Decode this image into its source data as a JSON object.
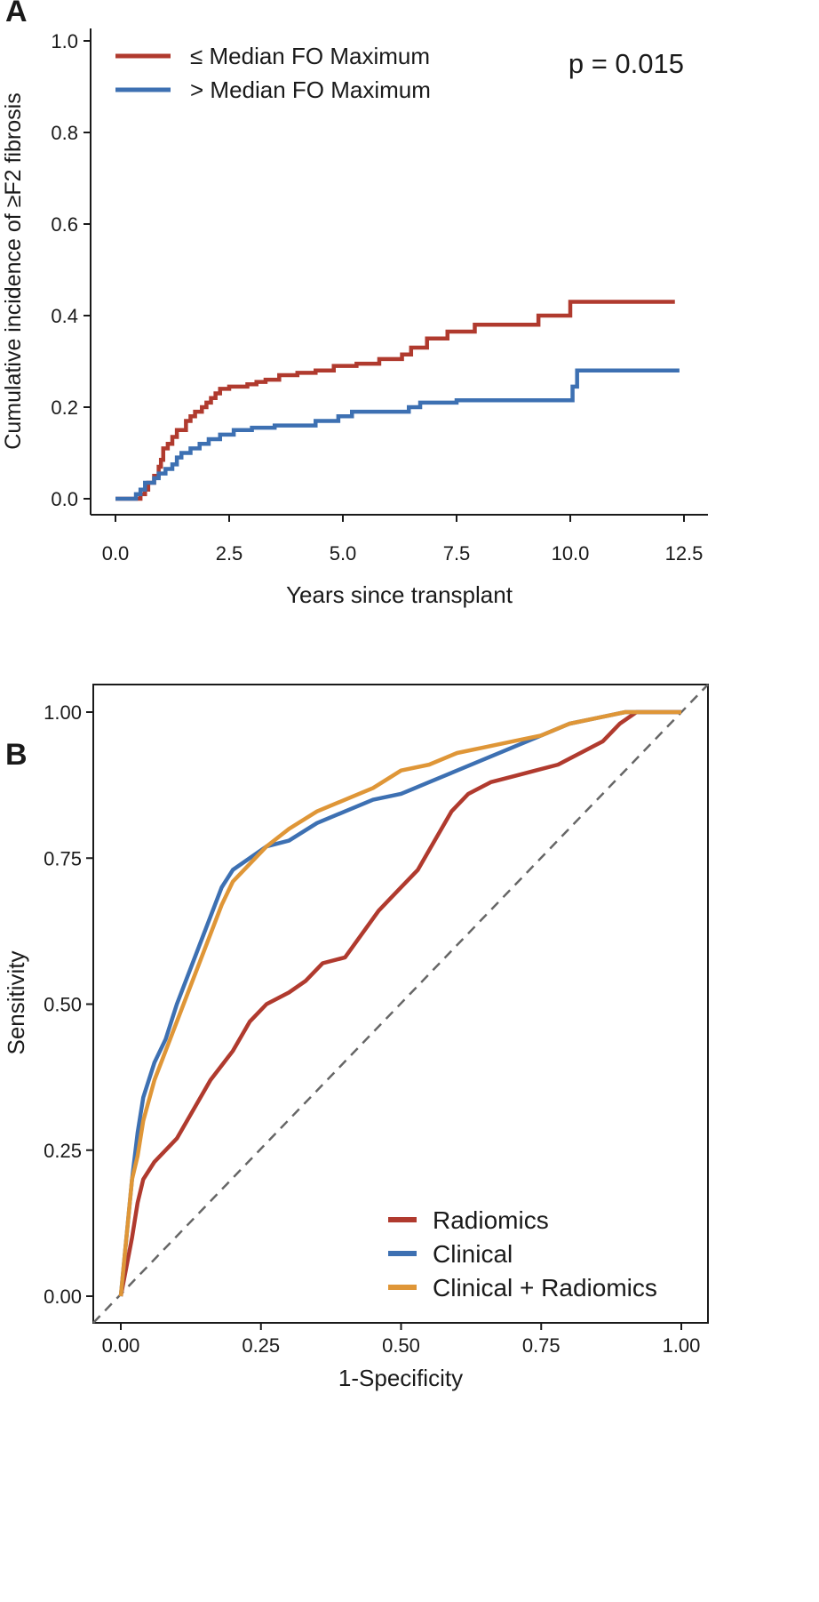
{
  "chart_data": [
    {
      "panel": "A",
      "type": "line",
      "xlabel": "Years since transplant",
      "ylabel": "Cumulative incidence of ≥F2 fibrosis",
      "xlim": [
        0,
        12.5
      ],
      "ylim": [
        0,
        1.0
      ],
      "xticks": [
        "0.0",
        "2.5",
        "5.0",
        "7.5",
        "10.0",
        "12.5"
      ],
      "yticks": [
        "0.0",
        "0.2",
        "0.4",
        "0.6",
        "0.8",
        "1.0"
      ],
      "annotation": "p = 0.015",
      "legend_position": "top-left",
      "series": [
        {
          "name": "≤ Median FO Maximum",
          "color": "#b03a2e",
          "step": true,
          "points": [
            [
              0,
              0
            ],
            [
              0.45,
              0
            ],
            [
              0.55,
              0.01
            ],
            [
              0.65,
              0.02
            ],
            [
              0.72,
              0.035
            ],
            [
              0.85,
              0.05
            ],
            [
              0.95,
              0.07
            ],
            [
              1.0,
              0.085
            ],
            [
              1.05,
              0.11
            ],
            [
              1.15,
              0.12
            ],
            [
              1.25,
              0.135
            ],
            [
              1.35,
              0.15
            ],
            [
              1.55,
              0.17
            ],
            [
              1.65,
              0.18
            ],
            [
              1.75,
              0.19
            ],
            [
              1.9,
              0.2
            ],
            [
              2.0,
              0.21
            ],
            [
              2.1,
              0.22
            ],
            [
              2.2,
              0.23
            ],
            [
              2.3,
              0.24
            ],
            [
              2.5,
              0.245
            ],
            [
              2.9,
              0.25
            ],
            [
              3.1,
              0.255
            ],
            [
              3.3,
              0.26
            ],
            [
              3.6,
              0.27
            ],
            [
              4.0,
              0.275
            ],
            [
              4.4,
              0.28
            ],
            [
              4.8,
              0.29
            ],
            [
              5.3,
              0.295
            ],
            [
              5.8,
              0.305
            ],
            [
              6.3,
              0.315
            ],
            [
              6.5,
              0.33
            ],
            [
              6.85,
              0.35
            ],
            [
              7.3,
              0.365
            ],
            [
              7.9,
              0.38
            ],
            [
              9.3,
              0.4
            ],
            [
              10.0,
              0.43
            ],
            [
              12.3,
              0.43
            ]
          ]
        },
        {
          "name": "> Median FO Maximum",
          "color": "#3d70b2",
          "step": true,
          "points": [
            [
              0,
              0
            ],
            [
              0.4,
              0
            ],
            [
              0.45,
              0.01
            ],
            [
              0.55,
              0.02
            ],
            [
              0.65,
              0.035
            ],
            [
              0.85,
              0.045
            ],
            [
              0.95,
              0.055
            ],
            [
              1.1,
              0.065
            ],
            [
              1.25,
              0.075
            ],
            [
              1.35,
              0.09
            ],
            [
              1.45,
              0.1
            ],
            [
              1.65,
              0.11
            ],
            [
              1.85,
              0.12
            ],
            [
              2.05,
              0.13
            ],
            [
              2.3,
              0.14
            ],
            [
              2.6,
              0.15
            ],
            [
              3.0,
              0.155
            ],
            [
              3.5,
              0.16
            ],
            [
              4.4,
              0.17
            ],
            [
              4.9,
              0.18
            ],
            [
              5.2,
              0.19
            ],
            [
              6.45,
              0.2
            ],
            [
              6.7,
              0.21
            ],
            [
              7.5,
              0.215
            ],
            [
              10.0,
              0.215
            ],
            [
              10.05,
              0.245
            ],
            [
              10.15,
              0.28
            ],
            [
              12.4,
              0.28
            ]
          ]
        }
      ]
    },
    {
      "panel": "B",
      "type": "line",
      "xlabel": "1-Specificity",
      "ylabel": "Sensitivity",
      "xlim": [
        0,
        1
      ],
      "ylim": [
        0,
        1
      ],
      "xticks": [
        "0.00",
        "0.25",
        "0.50",
        "0.75",
        "1.00"
      ],
      "yticks": [
        "0.00",
        "0.25",
        "0.50",
        "0.75",
        "1.00"
      ],
      "reference_line": "diagonal dashed",
      "legend_position": "bottom-right",
      "series": [
        {
          "name": "Radiomics",
          "color": "#b03a2e",
          "points": [
            [
              0,
              0
            ],
            [
              0.01,
              0.05
            ],
            [
              0.02,
              0.1
            ],
            [
              0.03,
              0.16
            ],
            [
              0.04,
              0.2
            ],
            [
              0.06,
              0.23
            ],
            [
              0.1,
              0.27
            ],
            [
              0.13,
              0.32
            ],
            [
              0.16,
              0.37
            ],
            [
              0.2,
              0.42
            ],
            [
              0.23,
              0.47
            ],
            [
              0.26,
              0.5
            ],
            [
              0.3,
              0.52
            ],
            [
              0.33,
              0.54
            ],
            [
              0.36,
              0.57
            ],
            [
              0.4,
              0.58
            ],
            [
              0.43,
              0.62
            ],
            [
              0.46,
              0.66
            ],
            [
              0.5,
              0.7
            ],
            [
              0.53,
              0.73
            ],
            [
              0.56,
              0.78
            ],
            [
              0.59,
              0.83
            ],
            [
              0.62,
              0.86
            ],
            [
              0.66,
              0.88
            ],
            [
              0.7,
              0.89
            ],
            [
              0.74,
              0.9
            ],
            [
              0.78,
              0.91
            ],
            [
              0.82,
              0.93
            ],
            [
              0.86,
              0.95
            ],
            [
              0.89,
              0.98
            ],
            [
              0.92,
              1.0
            ],
            [
              1.0,
              1.0
            ]
          ]
        },
        {
          "name": "Clinical",
          "color": "#3d70b2",
          "points": [
            [
              0,
              0
            ],
            [
              0.01,
              0.1
            ],
            [
              0.02,
              0.2
            ],
            [
              0.03,
              0.28
            ],
            [
              0.04,
              0.34
            ],
            [
              0.06,
              0.4
            ],
            [
              0.08,
              0.44
            ],
            [
              0.1,
              0.5
            ],
            [
              0.12,
              0.55
            ],
            [
              0.14,
              0.6
            ],
            [
              0.16,
              0.65
            ],
            [
              0.18,
              0.7
            ],
            [
              0.2,
              0.73
            ],
            [
              0.23,
              0.75
            ],
            [
              0.26,
              0.77
            ],
            [
              0.3,
              0.78
            ],
            [
              0.35,
              0.81
            ],
            [
              0.4,
              0.83
            ],
            [
              0.45,
              0.85
            ],
            [
              0.5,
              0.86
            ],
            [
              0.55,
              0.88
            ],
            [
              0.6,
              0.9
            ],
            [
              0.65,
              0.92
            ],
            [
              0.7,
              0.94
            ],
            [
              0.75,
              0.96
            ],
            [
              0.8,
              0.98
            ],
            [
              0.85,
              0.99
            ],
            [
              0.9,
              1.0
            ],
            [
              1.0,
              1.0
            ]
          ]
        },
        {
          "name": "Clinical + Radiomics",
          "color": "#df9637",
          "points": [
            [
              0,
              0
            ],
            [
              0.01,
              0.1
            ],
            [
              0.02,
              0.2
            ],
            [
              0.03,
              0.24
            ],
            [
              0.04,
              0.3
            ],
            [
              0.06,
              0.37
            ],
            [
              0.08,
              0.42
            ],
            [
              0.1,
              0.47
            ],
            [
              0.12,
              0.52
            ],
            [
              0.14,
              0.57
            ],
            [
              0.16,
              0.62
            ],
            [
              0.18,
              0.67
            ],
            [
              0.2,
              0.71
            ],
            [
              0.23,
              0.74
            ],
            [
              0.26,
              0.77
            ],
            [
              0.3,
              0.8
            ],
            [
              0.35,
              0.83
            ],
            [
              0.4,
              0.85
            ],
            [
              0.45,
              0.87
            ],
            [
              0.5,
              0.9
            ],
            [
              0.55,
              0.91
            ],
            [
              0.6,
              0.93
            ],
            [
              0.65,
              0.94
            ],
            [
              0.7,
              0.95
            ],
            [
              0.75,
              0.96
            ],
            [
              0.8,
              0.98
            ],
            [
              0.85,
              0.99
            ],
            [
              0.9,
              1.0
            ],
            [
              1.0,
              1.0
            ]
          ]
        }
      ]
    }
  ]
}
